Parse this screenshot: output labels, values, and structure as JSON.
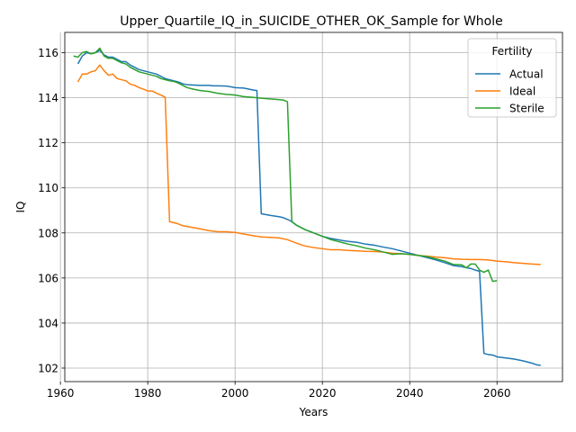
{
  "chart_data": {
    "type": "line",
    "title": "Upper_Quartile_IQ_in_SUICIDE_OTHER_OK_Sample for Whole",
    "xlabel": "Years",
    "ylabel": "IQ",
    "xlim": [
      1961,
      2075
    ],
    "ylim": [
      101.4,
      116.9
    ],
    "xticks": [
      1960,
      1980,
      2000,
      2020,
      2040,
      2060
    ],
    "yticks": [
      102,
      104,
      106,
      108,
      110,
      112,
      114,
      116
    ],
    "grid": true,
    "legend": {
      "title": "Fertility",
      "placement": "top-right"
    },
    "series": [
      {
        "name": "Actual",
        "color": "#1f77b4",
        "points": [
          [
            1964,
            115.5
          ],
          [
            1965,
            115.85
          ],
          [
            1966,
            116.0
          ],
          [
            1967,
            115.95
          ],
          [
            1968,
            116.0
          ],
          [
            1969,
            116.1
          ],
          [
            1970,
            115.9
          ],
          [
            1971,
            115.8
          ],
          [
            1972,
            115.8
          ],
          [
            1973,
            115.7
          ],
          [
            1974,
            115.6
          ],
          [
            1975,
            115.6
          ],
          [
            1976,
            115.45
          ],
          [
            1977,
            115.35
          ],
          [
            1978,
            115.25
          ],
          [
            1979,
            115.2
          ],
          [
            1980,
            115.15
          ],
          [
            1981,
            115.1
          ],
          [
            1982,
            115.05
          ],
          [
            1983,
            114.95
          ],
          [
            1984,
            114.85
          ],
          [
            1985,
            114.8
          ],
          [
            1986,
            114.75
          ],
          [
            1987,
            114.7
          ],
          [
            1988,
            114.62
          ],
          [
            1989,
            114.58
          ],
          [
            1990,
            114.57
          ],
          [
            1992,
            114.55
          ],
          [
            1994,
            114.55
          ],
          [
            1995,
            114.53
          ],
          [
            1996,
            114.53
          ],
          [
            1998,
            114.52
          ],
          [
            2000,
            114.45
          ],
          [
            2002,
            114.43
          ],
          [
            2004,
            114.35
          ],
          [
            2005,
            114.32
          ],
          [
            2006,
            108.85
          ],
          [
            2008,
            108.78
          ],
          [
            2010,
            108.72
          ],
          [
            2011,
            108.68
          ],
          [
            2012,
            108.6
          ],
          [
            2013,
            108.5
          ],
          [
            2014,
            108.35
          ],
          [
            2015,
            108.25
          ],
          [
            2016,
            108.15
          ],
          [
            2018,
            108.0
          ],
          [
            2020,
            107.85
          ],
          [
            2022,
            107.75
          ],
          [
            2024,
            107.68
          ],
          [
            2026,
            107.62
          ],
          [
            2028,
            107.58
          ],
          [
            2030,
            107.5
          ],
          [
            2032,
            107.45
          ],
          [
            2034,
            107.37
          ],
          [
            2036,
            107.3
          ],
          [
            2038,
            107.2
          ],
          [
            2040,
            107.1
          ],
          [
            2042,
            107.0
          ],
          [
            2044,
            106.9
          ],
          [
            2046,
            106.8
          ],
          [
            2048,
            106.68
          ],
          [
            2050,
            106.55
          ],
          [
            2052,
            106.5
          ],
          [
            2054,
            106.42
          ],
          [
            2055,
            106.35
          ],
          [
            2056,
            106.3
          ],
          [
            2057,
            102.65
          ],
          [
            2058,
            102.6
          ],
          [
            2059,
            102.58
          ],
          [
            2060,
            102.5
          ],
          [
            2062,
            102.45
          ],
          [
            2064,
            102.4
          ],
          [
            2066,
            102.32
          ],
          [
            2068,
            102.22
          ],
          [
            2069,
            102.15
          ],
          [
            2070,
            102.12
          ]
        ]
      },
      {
        "name": "Ideal",
        "color": "#ff7f0e",
        "points": [
          [
            1964,
            114.7
          ],
          [
            1965,
            115.05
          ],
          [
            1966,
            115.05
          ],
          [
            1967,
            115.15
          ],
          [
            1968,
            115.2
          ],
          [
            1969,
            115.45
          ],
          [
            1970,
            115.2
          ],
          [
            1971,
            115.0
          ],
          [
            1972,
            115.05
          ],
          [
            1973,
            114.85
          ],
          [
            1974,
            114.8
          ],
          [
            1975,
            114.75
          ],
          [
            1976,
            114.6
          ],
          [
            1977,
            114.55
          ],
          [
            1978,
            114.45
          ],
          [
            1979,
            114.38
          ],
          [
            1980,
            114.3
          ],
          [
            1981,
            114.3
          ],
          [
            1982,
            114.2
          ],
          [
            1983,
            114.12
          ],
          [
            1984,
            114.02
          ],
          [
            1985,
            108.5
          ],
          [
            1986,
            108.45
          ],
          [
            1987,
            108.4
          ],
          [
            1988,
            108.32
          ],
          [
            1990,
            108.25
          ],
          [
            1992,
            108.18
          ],
          [
            1994,
            108.1
          ],
          [
            1996,
            108.05
          ],
          [
            1998,
            108.05
          ],
          [
            2000,
            108.02
          ],
          [
            2002,
            107.95
          ],
          [
            2004,
            107.88
          ],
          [
            2006,
            107.82
          ],
          [
            2008,
            107.8
          ],
          [
            2010,
            107.78
          ],
          [
            2012,
            107.7
          ],
          [
            2014,
            107.55
          ],
          [
            2016,
            107.42
          ],
          [
            2018,
            107.35
          ],
          [
            2020,
            107.3
          ],
          [
            2022,
            107.25
          ],
          [
            2024,
            107.25
          ],
          [
            2026,
            107.22
          ],
          [
            2028,
            107.2
          ],
          [
            2030,
            107.18
          ],
          [
            2032,
            107.17
          ],
          [
            2034,
            107.15
          ],
          [
            2036,
            107.1
          ],
          [
            2038,
            107.08
          ],
          [
            2040,
            107.05
          ],
          [
            2042,
            107.0
          ],
          [
            2044,
            106.97
          ],
          [
            2046,
            106.93
          ],
          [
            2048,
            106.9
          ],
          [
            2050,
            106.85
          ],
          [
            2052,
            106.83
          ],
          [
            2054,
            106.82
          ],
          [
            2056,
            106.82
          ],
          [
            2058,
            106.8
          ],
          [
            2060,
            106.75
          ],
          [
            2062,
            106.72
          ],
          [
            2064,
            106.68
          ],
          [
            2066,
            106.65
          ],
          [
            2068,
            106.62
          ],
          [
            2070,
            106.6
          ]
        ]
      },
      {
        "name": "Sterile",
        "color": "#2ca02c",
        "points": [
          [
            1963,
            115.85
          ],
          [
            1964,
            115.8
          ],
          [
            1965,
            116.0
          ],
          [
            1966,
            116.05
          ],
          [
            1967,
            115.95
          ],
          [
            1968,
            116.0
          ],
          [
            1969,
            116.2
          ],
          [
            1970,
            115.85
          ],
          [
            1971,
            115.75
          ],
          [
            1972,
            115.75
          ],
          [
            1973,
            115.65
          ],
          [
            1974,
            115.55
          ],
          [
            1975,
            115.5
          ],
          [
            1976,
            115.35
          ],
          [
            1977,
            115.25
          ],
          [
            1978,
            115.15
          ],
          [
            1979,
            115.1
          ],
          [
            1980,
            115.05
          ],
          [
            1981,
            115.0
          ],
          [
            1982,
            114.95
          ],
          [
            1983,
            114.85
          ],
          [
            1984,
            114.8
          ],
          [
            1985,
            114.75
          ],
          [
            1986,
            114.72
          ],
          [
            1987,
            114.65
          ],
          [
            1988,
            114.55
          ],
          [
            1989,
            114.45
          ],
          [
            1990,
            114.4
          ],
          [
            1992,
            114.32
          ],
          [
            1994,
            114.28
          ],
          [
            1996,
            114.2
          ],
          [
            1998,
            114.15
          ],
          [
            2000,
            114.12
          ],
          [
            2002,
            114.05
          ],
          [
            2004,
            114.02
          ],
          [
            2006,
            113.98
          ],
          [
            2008,
            113.95
          ],
          [
            2010,
            113.92
          ],
          [
            2011,
            113.9
          ],
          [
            2012,
            113.82
          ],
          [
            2013,
            108.5
          ],
          [
            2014,
            108.35
          ],
          [
            2016,
            108.15
          ],
          [
            2018,
            108.0
          ],
          [
            2020,
            107.85
          ],
          [
            2022,
            107.7
          ],
          [
            2024,
            107.6
          ],
          [
            2026,
            107.5
          ],
          [
            2028,
            107.42
          ],
          [
            2030,
            107.32
          ],
          [
            2032,
            107.25
          ],
          [
            2034,
            107.15
          ],
          [
            2036,
            107.05
          ],
          [
            2038,
            107.08
          ],
          [
            2040,
            107.05
          ],
          [
            2042,
            107.0
          ],
          [
            2044,
            106.95
          ],
          [
            2046,
            106.85
          ],
          [
            2048,
            106.75
          ],
          [
            2050,
            106.6
          ],
          [
            2052,
            106.58
          ],
          [
            2053,
            106.45
          ],
          [
            2054,
            106.62
          ],
          [
            2055,
            106.62
          ],
          [
            2056,
            106.35
          ],
          [
            2057,
            106.25
          ],
          [
            2058,
            106.35
          ],
          [
            2059,
            105.85
          ],
          [
            2060,
            105.88
          ]
        ]
      }
    ]
  }
}
